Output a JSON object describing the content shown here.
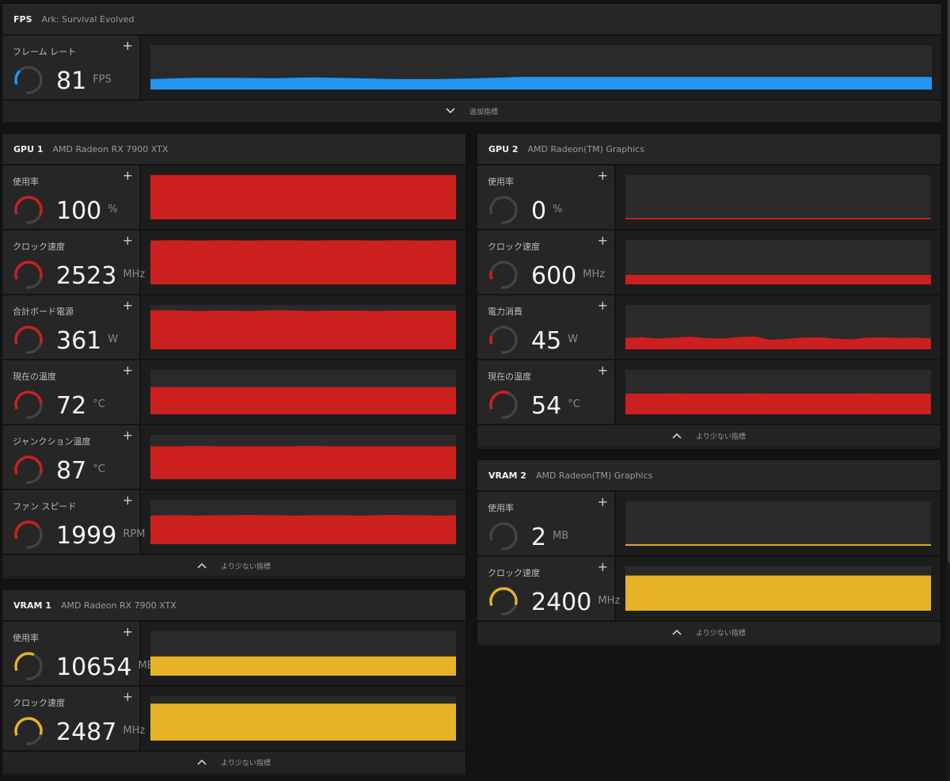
{
  "colors": {
    "fps": "#2196f3",
    "gpu": "#cc1f1f",
    "vram": "#e6b326",
    "track": "#444444"
  },
  "fps_panel": {
    "title": "FPS",
    "subtitle": "Ark: Survival Evolved",
    "footer": "追加指標",
    "metrics": [
      {
        "label": "フレーム レート",
        "value": "81",
        "unit": "FPS",
        "gauge": 0.22,
        "color": "fps",
        "level": 0.22,
        "series": [
          0.22,
          0.25,
          0.25,
          0.24,
          0.26,
          0.24,
          0.22,
          0.22,
          0.24,
          0.27,
          0.27,
          0.27,
          0.27,
          0.27,
          0.27,
          0.27,
          0.27,
          0.27,
          0.27,
          0.27
        ]
      }
    ]
  },
  "gpu1": {
    "title": "GPU 1",
    "subtitle": "AMD Radeon RX 7900 XTX",
    "footer": "より少ない指標",
    "metrics": [
      {
        "label": "使用率",
        "value": "100",
        "unit": "%",
        "gauge": 0.75,
        "color": "gpu",
        "level": 1.0,
        "series": [
          0.99,
          1,
          1,
          0.99,
          1,
          1,
          1,
          0.99,
          1,
          1,
          1,
          1,
          0.99,
          1,
          1,
          1,
          1,
          1,
          0.99,
          1
        ]
      },
      {
        "label": "クロック速度",
        "value": "2523",
        "unit": "MHz",
        "gauge": 0.72,
        "color": "gpu",
        "level": 0.98,
        "series": [
          0.97,
          0.98,
          0.98,
          0.97,
          0.98,
          0.98,
          0.97,
          0.98,
          0.98,
          0.98,
          0.97,
          0.98,
          0.98,
          0.98,
          0.97,
          0.98,
          0.98,
          0.97,
          0.98,
          0.98
        ]
      },
      {
        "label": "合計ボード電源",
        "value": "361",
        "unit": "W",
        "gauge": 0.72,
        "color": "gpu",
        "level": 0.86,
        "series": [
          0.86,
          0.87,
          0.86,
          0.85,
          0.86,
          0.86,
          0.85,
          0.86,
          0.87,
          0.86,
          0.85,
          0.86,
          0.86,
          0.86,
          0.85,
          0.86,
          0.86,
          0.86,
          0.86,
          0.86
        ]
      },
      {
        "label": "現在の温度",
        "value": "72",
        "unit": "°C",
        "gauge": 0.65,
        "color": "gpu",
        "level": 0.6,
        "series": [
          0.6,
          0.6,
          0.6,
          0.6,
          0.6,
          0.6,
          0.6,
          0.6,
          0.6,
          0.6,
          0.6,
          0.6,
          0.6,
          0.6,
          0.6,
          0.6,
          0.6,
          0.6,
          0.6,
          0.6
        ]
      },
      {
        "label": "ジャンクション温度",
        "value": "87",
        "unit": "°C",
        "gauge": 0.72,
        "color": "gpu",
        "level": 0.73,
        "series": [
          0.73,
          0.73,
          0.73,
          0.74,
          0.73,
          0.73,
          0.73,
          0.73,
          0.73,
          0.73,
          0.74,
          0.73,
          0.73,
          0.73,
          0.73,
          0.73,
          0.73,
          0.73,
          0.73,
          0.73
        ]
      },
      {
        "label": "ファン スピード",
        "value": "1999",
        "unit": "RPM",
        "gauge": 0.55,
        "color": "gpu",
        "level": 0.64,
        "series": [
          0.63,
          0.64,
          0.64,
          0.63,
          0.64,
          0.64,
          0.65,
          0.64,
          0.64,
          0.63,
          0.64,
          0.64,
          0.64,
          0.63,
          0.64,
          0.65,
          0.64,
          0.64,
          0.63,
          0.64
        ]
      }
    ]
  },
  "vram1": {
    "title": "VRAM 1",
    "subtitle": "AMD Radeon RX 7900 XTX",
    "footer": "より少ない指標",
    "metrics": [
      {
        "label": "使用率",
        "value": "10654",
        "unit": "MB",
        "gauge": 0.45,
        "color": "vram",
        "level": 0.42,
        "series": [
          0.42,
          0.42,
          0.42,
          0.42,
          0.42,
          0.42,
          0.42,
          0.42,
          0.42,
          0.42,
          0.42,
          0.42,
          0.42,
          0.42,
          0.42,
          0.42,
          0.42,
          0.42,
          0.42,
          0.42
        ]
      },
      {
        "label": "クロック速度",
        "value": "2487",
        "unit": "MHz",
        "gauge": 0.72,
        "color": "vram",
        "level": 0.82,
        "series": [
          0.82,
          0.82,
          0.82,
          0.82,
          0.82,
          0.82,
          0.82,
          0.82,
          0.82,
          0.82,
          0.82,
          0.82,
          0.82,
          0.82,
          0.82,
          0.82,
          0.82,
          0.82,
          0.82,
          0.82
        ]
      }
    ]
  },
  "gpu2": {
    "title": "GPU 2",
    "subtitle": "AMD Radeon(TM) Graphics",
    "footer": "より少ない指標",
    "metrics": [
      {
        "label": "使用率",
        "value": "0",
        "unit": "%",
        "gauge": 0.0,
        "color": "gpu",
        "level": 0.02,
        "series": [
          0.02,
          0.02,
          0.02,
          0.02,
          0.02,
          0.02,
          0.02,
          0.02,
          0.02,
          0.02,
          0.02,
          0.02,
          0.02,
          0.02,
          0.02,
          0.02,
          0.02,
          0.02,
          0.02,
          0.02
        ]
      },
      {
        "label": "クロック速度",
        "value": "600",
        "unit": "MHz",
        "gauge": 0.12,
        "color": "gpu",
        "level": 0.2,
        "series": [
          0.2,
          0.2,
          0.2,
          0.2,
          0.2,
          0.2,
          0.2,
          0.2,
          0.2,
          0.2,
          0.2,
          0.2,
          0.2,
          0.2,
          0.2,
          0.2,
          0.2,
          0.2,
          0.2,
          0.2
        ]
      },
      {
        "label": "電力消費",
        "value": "45",
        "unit": "W",
        "gauge": 0.12,
        "color": "gpu",
        "level": 0.25,
        "series": [
          0.24,
          0.26,
          0.23,
          0.25,
          0.27,
          0.24,
          0.23,
          0.26,
          0.28,
          0.2,
          0.22,
          0.25,
          0.26,
          0.23,
          0.21,
          0.25,
          0.26,
          0.24,
          0.25,
          0.23
        ]
      },
      {
        "label": "現在の温度",
        "value": "54",
        "unit": "°C",
        "gauge": 0.45,
        "color": "gpu",
        "level": 0.45,
        "series": [
          0.45,
          0.45,
          0.45,
          0.46,
          0.45,
          0.45,
          0.45,
          0.45,
          0.46,
          0.45,
          0.45,
          0.45,
          0.45,
          0.45,
          0.45,
          0.46,
          0.45,
          0.45,
          0.45,
          0.45
        ]
      }
    ]
  },
  "vram2": {
    "title": "VRAM 2",
    "subtitle": "AMD Radeon(TM) Graphics",
    "footer": "より少ない指標",
    "metrics": [
      {
        "label": "使用率",
        "value": "2",
        "unit": "MB",
        "gauge": 0.0,
        "color": "vram",
        "level": 0.02,
        "series": [
          0.02,
          0.02,
          0.02,
          0.02,
          0.02,
          0.02,
          0.02,
          0.02,
          0.02,
          0.02,
          0.02,
          0.02,
          0.02,
          0.02,
          0.02,
          0.02,
          0.02,
          0.02,
          0.02,
          0.02
        ]
      },
      {
        "label": "クロック速度",
        "value": "2400",
        "unit": "MHz",
        "gauge": 0.72,
        "color": "vram",
        "level": 0.78,
        "series": [
          0.78,
          0.78,
          0.78,
          0.78,
          0.78,
          0.78,
          0.78,
          0.78,
          0.78,
          0.78,
          0.78,
          0.78,
          0.78,
          0.78,
          0.78,
          0.78,
          0.78,
          0.78,
          0.78,
          0.78
        ]
      }
    ]
  }
}
